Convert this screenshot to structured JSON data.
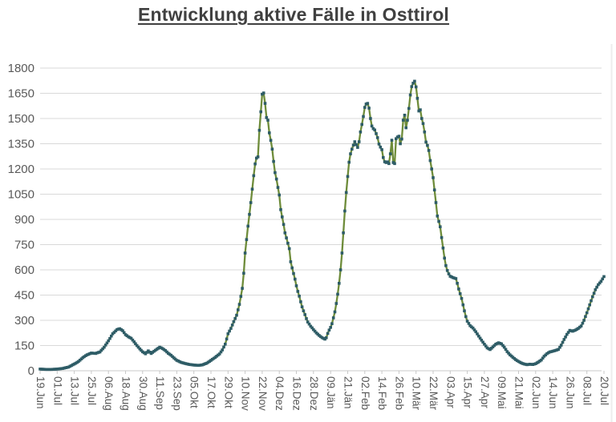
{
  "window": {
    "background": "#ffffff"
  },
  "chart_data": {
    "type": "line",
    "title": "Entwicklung aktive Fälle in Osttirol",
    "legend": "none",
    "grid": "horizontal",
    "x_axis": {
      "unit": "date",
      "first": "19.Jun",
      "last": "20.Jul",
      "tick_spacing_days": 12,
      "total_days": 396,
      "tick_labels": [
        "19.Jun",
        "01.Jul",
        "13.Jul",
        "25.Jul",
        "06.Aug",
        "18.Aug",
        "30.Aug",
        "11.Sep",
        "23.Sep",
        "05.Okt",
        "17.Okt",
        "29.Okt",
        "10.Nov",
        "22.Nov",
        "04.Dez",
        "16.Dez",
        "28.Dez",
        "09.Jän",
        "21.Jän",
        "02.Feb",
        "14.Feb",
        "26.Feb",
        "10.Mär",
        "22.Mär",
        "03.Apr",
        "15.Apr",
        "27.Apr",
        "09.Mai",
        "21.Mai",
        "02.Jun",
        "14.Jun",
        "26.Jun",
        "08.Jul",
        "20.Jul"
      ]
    },
    "y_axis": {
      "min": 0,
      "max": 1800,
      "step": 150,
      "ticks": [
        0,
        150,
        300,
        450,
        600,
        750,
        900,
        1050,
        1200,
        1350,
        1500,
        1650,
        1800
      ]
    },
    "style": {
      "line_color": "#6e8c3a",
      "marker_color": "#2e5c66",
      "grid_color": "#d9d9d9",
      "axis_color": "#c8c8c8",
      "label_color": "#595959",
      "title_color": "#404040"
    },
    "series": [
      {
        "marker": "square",
        "sampling": "keypoints, day offset from 19.Jun (0) to 20.Jul (396), daily values interpolated",
        "points_day_value": [
          [
            0,
            10
          ],
          [
            4,
            8
          ],
          [
            8,
            8
          ],
          [
            12,
            10
          ],
          [
            16,
            14
          ],
          [
            20,
            22
          ],
          [
            24,
            40
          ],
          [
            27,
            55
          ],
          [
            30,
            78
          ],
          [
            33,
            95
          ],
          [
            36,
            105
          ],
          [
            39,
            103
          ],
          [
            42,
            112
          ],
          [
            45,
            140
          ],
          [
            48,
            178
          ],
          [
            51,
            220
          ],
          [
            54,
            245
          ],
          [
            56,
            250
          ],
          [
            58,
            238
          ],
          [
            60,
            215
          ],
          [
            62,
            202
          ],
          [
            64,
            193
          ],
          [
            66,
            172
          ],
          [
            68,
            150
          ],
          [
            70,
            130
          ],
          [
            72,
            113
          ],
          [
            74,
            101
          ],
          [
            76,
            118
          ],
          [
            78,
            103
          ],
          [
            81,
            122
          ],
          [
            84,
            140
          ],
          [
            86,
            132
          ],
          [
            88,
            120
          ],
          [
            90,
            104
          ],
          [
            92,
            92
          ],
          [
            94,
            76
          ],
          [
            96,
            62
          ],
          [
            99,
            50
          ],
          [
            102,
            43
          ],
          [
            105,
            37
          ],
          [
            108,
            34
          ],
          [
            111,
            32
          ],
          [
            114,
            35
          ],
          [
            117,
            45
          ],
          [
            120,
            62
          ],
          [
            123,
            80
          ],
          [
            126,
            100
          ],
          [
            128,
            124
          ],
          [
            130,
            158
          ],
          [
            132,
            220
          ],
          [
            134,
            252
          ],
          [
            136,
            292
          ],
          [
            138,
            330
          ],
          [
            140,
            395
          ],
          [
            142,
            490
          ],
          [
            143,
            580
          ],
          [
            144,
            700
          ],
          [
            145,
            780
          ],
          [
            146,
            860
          ],
          [
            147,
            930
          ],
          [
            148,
            1000
          ],
          [
            149,
            1080
          ],
          [
            150,
            1160
          ],
          [
            151,
            1230
          ],
          [
            152,
            1265
          ],
          [
            153,
            1272
          ],
          [
            154,
            1430
          ],
          [
            155,
            1540
          ],
          [
            156,
            1645
          ],
          [
            157,
            1652
          ],
          [
            158,
            1590
          ],
          [
            159,
            1505
          ],
          [
            160,
            1490
          ],
          [
            161,
            1415
          ],
          [
            162,
            1370
          ],
          [
            163,
            1318
          ],
          [
            164,
            1245
          ],
          [
            165,
            1178
          ],
          [
            166,
            1140
          ],
          [
            167,
            1090
          ],
          [
            168,
            1045
          ],
          [
            169,
            958
          ],
          [
            170,
            915
          ],
          [
            171,
            870
          ],
          [
            172,
            820
          ],
          [
            173,
            790
          ],
          [
            174,
            758
          ],
          [
            175,
            726
          ],
          [
            176,
            648
          ],
          [
            177,
            612
          ],
          [
            178,
            578
          ],
          [
            179,
            545
          ],
          [
            180,
            505
          ],
          [
            181,
            472
          ],
          [
            182,
            444
          ],
          [
            183,
            410
          ],
          [
            184,
            380
          ],
          [
            185,
            356
          ],
          [
            186,
            334
          ],
          [
            187,
            310
          ],
          [
            188,
            290
          ],
          [
            190,
            265
          ],
          [
            192,
            245
          ],
          [
            194,
            225
          ],
          [
            196,
            210
          ],
          [
            198,
            197
          ],
          [
            200,
            188
          ],
          [
            201,
            196
          ],
          [
            202,
            222
          ],
          [
            203,
            242
          ],
          [
            204,
            258
          ],
          [
            205,
            280
          ],
          [
            206,
            315
          ],
          [
            207,
            350
          ],
          [
            208,
            400
          ],
          [
            209,
            455
          ],
          [
            210,
            520
          ],
          [
            211,
            600
          ],
          [
            212,
            700
          ],
          [
            213,
            820
          ],
          [
            214,
            950
          ],
          [
            215,
            1060
          ],
          [
            216,
            1155
          ],
          [
            217,
            1240
          ],
          [
            218,
            1290
          ],
          [
            219,
            1318
          ],
          [
            220,
            1342
          ],
          [
            221,
            1362
          ],
          [
            222,
            1345
          ],
          [
            223,
            1328
          ],
          [
            224,
            1362
          ],
          [
            225,
            1420
          ],
          [
            226,
            1465
          ],
          [
            227,
            1512
          ],
          [
            228,
            1566
          ],
          [
            229,
            1586
          ],
          [
            230,
            1590
          ],
          [
            231,
            1562
          ],
          [
            232,
            1500
          ],
          [
            233,
            1455
          ],
          [
            234,
            1440
          ],
          [
            235,
            1432
          ],
          [
            236,
            1410
          ],
          [
            237,
            1386
          ],
          [
            238,
            1348
          ],
          [
            239,
            1330
          ],
          [
            240,
            1315
          ],
          [
            241,
            1268
          ],
          [
            242,
            1243
          ],
          [
            243,
            1238
          ],
          [
            244,
            1242
          ],
          [
            245,
            1232
          ],
          [
            246,
            1290
          ],
          [
            247,
            1371
          ],
          [
            248,
            1238
          ],
          [
            249,
            1232
          ],
          [
            250,
            1380
          ],
          [
            251,
            1390
          ],
          [
            252,
            1395
          ],
          [
            253,
            1350
          ],
          [
            254,
            1378
          ],
          [
            255,
            1490
          ],
          [
            256,
            1520
          ],
          [
            257,
            1445
          ],
          [
            258,
            1490
          ],
          [
            259,
            1560
          ],
          [
            260,
            1640
          ],
          [
            261,
            1690
          ],
          [
            262,
            1710
          ],
          [
            263,
            1722
          ],
          [
            264,
            1688
          ],
          [
            265,
            1620
          ],
          [
            266,
            1545
          ],
          [
            267,
            1552
          ],
          [
            268,
            1500
          ],
          [
            269,
            1470
          ],
          [
            270,
            1420
          ],
          [
            271,
            1360
          ],
          [
            272,
            1340
          ],
          [
            273,
            1310
          ],
          [
            274,
            1250
          ],
          [
            275,
            1200
          ],
          [
            276,
            1148
          ],
          [
            277,
            1075
          ],
          [
            278,
            1000
          ],
          [
            279,
            920
          ],
          [
            280,
            888
          ],
          [
            281,
            856
          ],
          [
            282,
            792
          ],
          [
            283,
            730
          ],
          [
            284,
            670
          ],
          [
            285,
            625
          ],
          [
            286,
            596
          ],
          [
            287,
            576
          ],
          [
            288,
            562
          ],
          [
            290,
            554
          ],
          [
            292,
            548
          ],
          [
            293,
            520
          ],
          [
            294,
            486
          ],
          [
            295,
            458
          ],
          [
            296,
            430
          ],
          [
            297,
            392
          ],
          [
            298,
            356
          ],
          [
            299,
            322
          ],
          [
            300,
            295
          ],
          [
            302,
            268
          ],
          [
            304,
            254
          ],
          [
            306,
            232
          ],
          [
            308,
            206
          ],
          [
            310,
            182
          ],
          [
            312,
            158
          ],
          [
            314,
            136
          ],
          [
            316,
            126
          ],
          [
            318,
            142
          ],
          [
            320,
            158
          ],
          [
            322,
            166
          ],
          [
            324,
            160
          ],
          [
            326,
            140
          ],
          [
            328,
            114
          ],
          [
            330,
            95
          ],
          [
            332,
            80
          ],
          [
            334,
            66
          ],
          [
            336,
            55
          ],
          [
            338,
            46
          ],
          [
            340,
            40
          ],
          [
            342,
            36
          ],
          [
            344,
            39
          ],
          [
            346,
            37
          ],
          [
            348,
            42
          ],
          [
            350,
            52
          ],
          [
            352,
            64
          ],
          [
            354,
            86
          ],
          [
            356,
            102
          ],
          [
            358,
            112
          ],
          [
            360,
            116
          ],
          [
            362,
            121
          ],
          [
            364,
            127
          ],
          [
            366,
            152
          ],
          [
            368,
            186
          ],
          [
            370,
            216
          ],
          [
            372,
            240
          ],
          [
            374,
            235
          ],
          [
            376,
            242
          ],
          [
            378,
            252
          ],
          [
            380,
            266
          ],
          [
            382,
            300
          ],
          [
            384,
            345
          ],
          [
            386,
            392
          ],
          [
            388,
            440
          ],
          [
            390,
            482
          ],
          [
            392,
            512
          ],
          [
            394,
            532
          ],
          [
            396,
            560
          ]
        ]
      }
    ]
  }
}
